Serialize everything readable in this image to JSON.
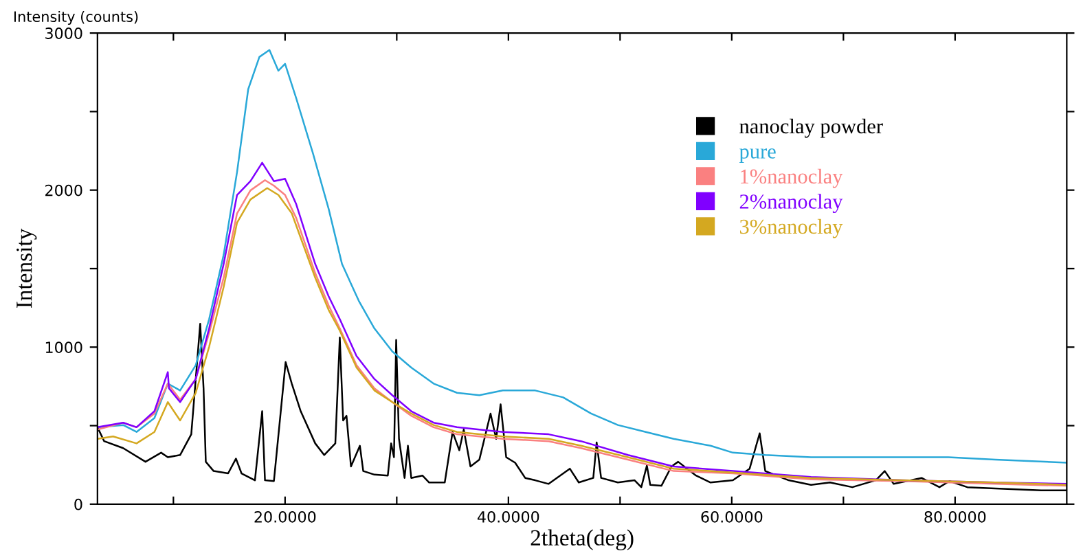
{
  "chart_data": {
    "type": "line",
    "xlabel": "2theta(deg)",
    "ylabel": "Intensity",
    "annotations": [
      "Intensity (counts)"
    ],
    "xlim": [
      3.2,
      90
    ],
    "ylim": [
      0,
      3000
    ],
    "xticks": [
      {
        "value": 10,
        "label": null
      },
      {
        "value": 20,
        "label": "20.0000"
      },
      {
        "value": 30,
        "label": null
      },
      {
        "value": 40,
        "label": "40.0000"
      },
      {
        "value": 50,
        "label": null
      },
      {
        "value": 60,
        "label": "60.0000"
      },
      {
        "value": 70,
        "label": null
      },
      {
        "value": 80,
        "label": "80.0000"
      }
    ],
    "yticks": [
      0,
      {
        "value": 500,
        "label": null
      },
      1000,
      {
        "value": 1500,
        "label": null
      },
      2000,
      {
        "value": 2500,
        "label": null
      },
      3000
    ],
    "grid": false,
    "legend": "top right",
    "marker": "none",
    "line_style": "solid",
    "series": [
      {
        "name": "nanoclay powder",
        "color": "#000000",
        "x": [
          3.2,
          3.8,
          5.5,
          7.5,
          8.9,
          9.5,
          10.6,
          11.6,
          12.4,
          12.7,
          12.9,
          13.6,
          14.9,
          15.6,
          16.1,
          17.3,
          17.95,
          18.2,
          19.0,
          20.05,
          20.6,
          21.4,
          22.7,
          23.5,
          24.5,
          24.9,
          25.2,
          25.5,
          25.9,
          26.7,
          27.0,
          28.0,
          29.2,
          29.5,
          29.75,
          29.95,
          30.2,
          30.7,
          31.0,
          31.3,
          32.3,
          32.9,
          34.3,
          35.0,
          35.6,
          36.0,
          36.6,
          37.4,
          38.4,
          38.9,
          39.3,
          39.8,
          40.6,
          41.5,
          42.4,
          43.6,
          45.5,
          46.3,
          47.6,
          47.9,
          48.3,
          49.8,
          51.3,
          51.9,
          52.4,
          52.7,
          53.7,
          54.6,
          55.2,
          56.8,
          58.1,
          60.1,
          61.6,
          62.5,
          63.0,
          65.1,
          67.1,
          68.8,
          70.8,
          72.9,
          73.7,
          74.5,
          77.0,
          78.6,
          79.5,
          81.1,
          83.6,
          87.7,
          90.0
        ],
        "values": [
          490,
          401,
          357,
          270,
          328,
          299,
          313,
          445,
          1149,
          738,
          270,
          211,
          196,
          290,
          196,
          152,
          592,
          152,
          147,
          905,
          768,
          592,
          387,
          313,
          387,
          1061,
          533,
          563,
          240,
          372,
          211,
          188,
          182,
          387,
          299,
          1046,
          416,
          167,
          372,
          167,
          182,
          138,
          138,
          460,
          343,
          475,
          240,
          284,
          577,
          416,
          636,
          299,
          264,
          167,
          152,
          129,
          226,
          138,
          167,
          393,
          167,
          138,
          152,
          108,
          246,
          123,
          117,
          240,
          270,
          182,
          138,
          152,
          226,
          451,
          211,
          152,
          123,
          138,
          108,
          152,
          211,
          129,
          167,
          108,
          147,
          108,
          100,
          88,
          88
        ]
      },
      {
        "name": "pure",
        "color": "#29a8d8",
        "x": [
          3.2,
          5.5,
          6.7,
          8.3,
          9.5,
          10.6,
          12.0,
          13.2,
          14.5,
          15.7,
          16.7,
          17.7,
          18.6,
          19.4,
          20.0,
          21.0,
          22.5,
          23.9,
          25.1,
          26.6,
          28.0,
          29.6,
          31.3,
          33.3,
          35.4,
          37.4,
          39.5,
          41.5,
          42.4,
          44.9,
          47.4,
          49.8,
          52.3,
          54.8,
          58.1,
          60.1,
          63.0,
          67.1,
          71.2,
          75.3,
          79.4,
          83.6,
          90.0
        ],
        "values": [
          490,
          504,
          460,
          548,
          768,
          724,
          885,
          1178,
          1588,
          2115,
          2643,
          2848,
          2892,
          2760,
          2804,
          2584,
          2233,
          1881,
          1529,
          1295,
          1119,
          973,
          870,
          768,
          709,
          694,
          724,
          724,
          724,
          680,
          577,
          504,
          460,
          416,
          372,
          328,
          313,
          299,
          299,
          299,
          299,
          284,
          264
        ]
      },
      {
        "name": "1%nanoclay",
        "color": "#fa8080",
        "x": [
          3.2,
          5.5,
          6.7,
          8.3,
          9.5,
          10.6,
          12.0,
          13.2,
          14.5,
          15.7,
          16.9,
          18.2,
          19.0,
          20.0,
          21.0,
          22.7,
          23.9,
          24.9,
          26.4,
          28.0,
          29.6,
          31.3,
          33.3,
          35.4,
          37.4,
          39.5,
          43.6,
          46.5,
          50.7,
          54.8,
          60.1,
          67.1,
          75.3,
          83.6,
          90.0
        ],
        "values": [
          475,
          519,
          490,
          577,
          768,
          665,
          797,
          1090,
          1442,
          1852,
          1998,
          2063,
          2028,
          1969,
          1822,
          1471,
          1266,
          1119,
          885,
          738,
          650,
          563,
          490,
          445,
          431,
          416,
          401,
          357,
          284,
          211,
          196,
          158,
          147,
          129,
          117
        ]
      },
      {
        "name": "2%nanoclay",
        "color": "#8000ff",
        "x": [
          3.2,
          5.5,
          6.7,
          8.3,
          9.5,
          9.6,
          10.6,
          12.0,
          13.2,
          14.5,
          15.7,
          16.9,
          17.95,
          19.0,
          20.0,
          21.0,
          22.7,
          23.9,
          24.9,
          26.4,
          28.0,
          29.6,
          31.3,
          33.3,
          35.4,
          37.4,
          39.5,
          43.6,
          46.5,
          50.7,
          54.8,
          60.1,
          67.1,
          75.3,
          83.6,
          90.0
        ],
        "values": [
          490,
          519,
          490,
          592,
          841,
          738,
          650,
          797,
          1119,
          1529,
          1969,
          2057,
          2174,
          2057,
          2072,
          1910,
          1529,
          1324,
          1178,
          943,
          797,
          694,
          592,
          519,
          490,
          475,
          460,
          445,
          401,
          313,
          240,
          211,
          173,
          152,
          138,
          129
        ]
      },
      {
        "name": "3%nanoclay",
        "color": "#d4a820",
        "x": [
          3.2,
          4.6,
          6.7,
          8.3,
          9.5,
          10.6,
          12.0,
          13.2,
          14.5,
          15.7,
          16.9,
          18.4,
          19.4,
          20.6,
          22.7,
          23.9,
          24.9,
          26.4,
          28.0,
          29.6,
          31.3,
          33.3,
          35.4,
          37.4,
          39.5,
          43.6,
          46.5,
          50.7,
          54.8,
          60.1,
          67.1,
          75.3,
          83.6,
          90.0
        ],
        "values": [
          416,
          431,
          387,
          460,
          650,
          533,
          709,
          1002,
          1383,
          1793,
          1940,
          2013,
          1969,
          1852,
          1442,
          1237,
          1105,
          870,
          724,
          650,
          577,
          504,
          460,
          445,
          431,
          416,
          372,
          299,
          226,
          202,
          167,
          152,
          138,
          123
        ]
      }
    ]
  }
}
